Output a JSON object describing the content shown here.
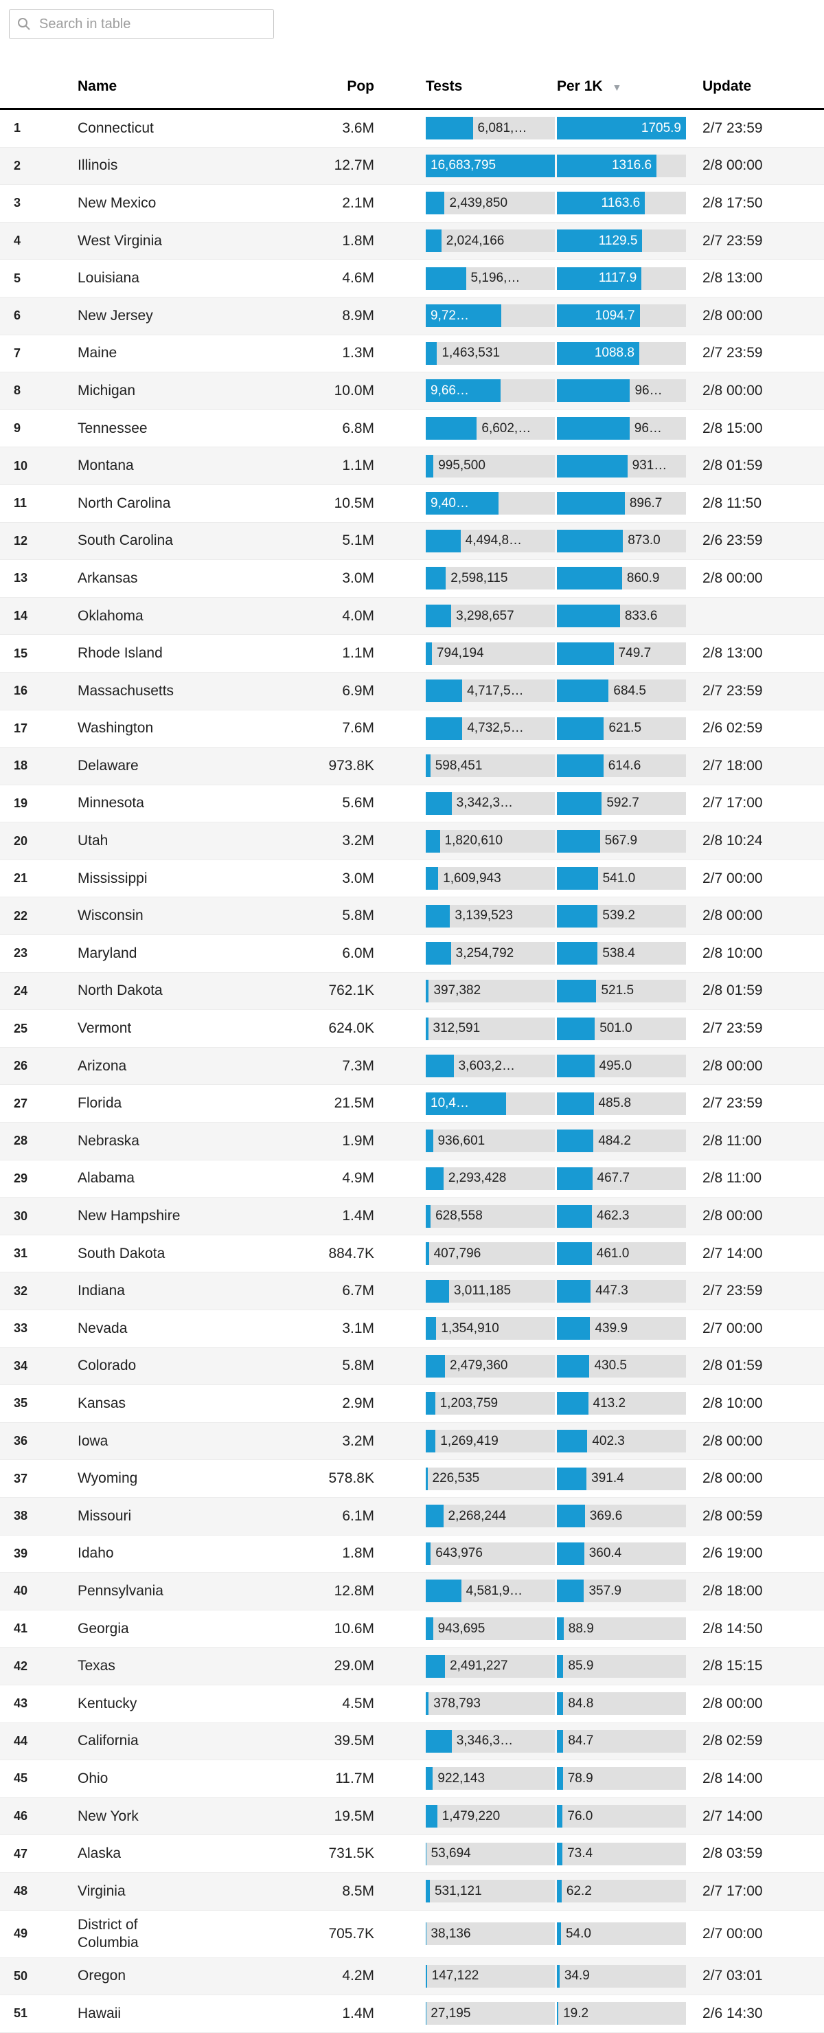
{
  "search": {
    "placeholder": "Search in table",
    "value": ""
  },
  "table": {
    "columns": {
      "name": "Name",
      "pop": "Pop",
      "tests": "Tests",
      "per1k": "Per 1K",
      "update": "Update"
    },
    "sort": {
      "column": "per1k",
      "direction": "desc",
      "arrow": "▼"
    },
    "colors": {
      "bar": "#189ad3",
      "track": "#e0e0e0"
    },
    "tests_max": 16683795,
    "per1k_max": 1705.9,
    "rows": [
      {
        "rank": "1",
        "name": "Connecticut",
        "pop": "3.6M",
        "tests": {
          "label": "6,081,…",
          "value": 6081000,
          "inside": false
        },
        "per1k": {
          "label": "1705.9",
          "value": 1705.9,
          "inside": true
        },
        "update": "2/7 23:59"
      },
      {
        "rank": "2",
        "name": "Illinois",
        "pop": "12.7M",
        "tests": {
          "label": "16,683,795",
          "value": 16683795,
          "inside": true
        },
        "per1k": {
          "label": "1316.6",
          "value": 1316.6,
          "inside": true
        },
        "update": "2/8 00:00"
      },
      {
        "rank": "3",
        "name": "New Mexico",
        "pop": "2.1M",
        "tests": {
          "label": "2,439,850",
          "value": 2439850,
          "inside": false
        },
        "per1k": {
          "label": "1163.6",
          "value": 1163.6,
          "inside": true
        },
        "update": "2/8 17:50"
      },
      {
        "rank": "4",
        "name": "West Virginia",
        "pop": "1.8M",
        "tests": {
          "label": "2,024,166",
          "value": 2024166,
          "inside": false
        },
        "per1k": {
          "label": "1129.5",
          "value": 1129.5,
          "inside": true
        },
        "update": "2/7 23:59"
      },
      {
        "rank": "5",
        "name": "Louisiana",
        "pop": "4.6M",
        "tests": {
          "label": "5,196,…",
          "value": 5196000,
          "inside": false
        },
        "per1k": {
          "label": "1117.9",
          "value": 1117.9,
          "inside": true
        },
        "update": "2/8 13:00"
      },
      {
        "rank": "6",
        "name": "New Jersey",
        "pop": "8.9M",
        "tests": {
          "label": "9,72…",
          "value": 9720000,
          "inside": true
        },
        "per1k": {
          "label": "1094.7",
          "value": 1094.7,
          "inside": true
        },
        "update": "2/8 00:00"
      },
      {
        "rank": "7",
        "name": "Maine",
        "pop": "1.3M",
        "tests": {
          "label": "1,463,531",
          "value": 1463531,
          "inside": false
        },
        "per1k": {
          "label": "1088.8",
          "value": 1088.8,
          "inside": true
        },
        "update": "2/7 23:59"
      },
      {
        "rank": "8",
        "name": "Michigan",
        "pop": "10.0M",
        "tests": {
          "label": "9,66…",
          "value": 9660000,
          "inside": true
        },
        "per1k": {
          "label": "96…",
          "value": 966,
          "inside": false
        },
        "update": "2/8 00:00"
      },
      {
        "rank": "9",
        "name": "Tennessee",
        "pop": "6.8M",
        "tests": {
          "label": "6,602,…",
          "value": 6602000,
          "inside": false
        },
        "per1k": {
          "label": "96…",
          "value": 960,
          "inside": false
        },
        "update": "2/8 15:00"
      },
      {
        "rank": "10",
        "name": "Montana",
        "pop": "1.1M",
        "tests": {
          "label": "995,500",
          "value": 995500,
          "inside": false
        },
        "per1k": {
          "label": "931…",
          "value": 931,
          "inside": false
        },
        "update": "2/8 01:59"
      },
      {
        "rank": "11",
        "name": "North Carolina",
        "pop": "10.5M",
        "tests": {
          "label": "9,40…",
          "value": 9400000,
          "inside": true
        },
        "per1k": {
          "label": "896.7",
          "value": 896.7,
          "inside": false
        },
        "update": "2/8 11:50"
      },
      {
        "rank": "12",
        "name": "South Carolina",
        "pop": "5.1M",
        "tests": {
          "label": "4,494,8…",
          "value": 4494800,
          "inside": false
        },
        "per1k": {
          "label": "873.0",
          "value": 873.0,
          "inside": false
        },
        "update": "2/6 23:59"
      },
      {
        "rank": "13",
        "name": "Arkansas",
        "pop": "3.0M",
        "tests": {
          "label": "2,598,115",
          "value": 2598115,
          "inside": false
        },
        "per1k": {
          "label": "860.9",
          "value": 860.9,
          "inside": false
        },
        "update": "2/8 00:00"
      },
      {
        "rank": "14",
        "name": "Oklahoma",
        "pop": "4.0M",
        "tests": {
          "label": "3,298,657",
          "value": 3298657,
          "inside": false
        },
        "per1k": {
          "label": "833.6",
          "value": 833.6,
          "inside": false
        },
        "update": ""
      },
      {
        "rank": "15",
        "name": "Rhode Island",
        "pop": "1.1M",
        "tests": {
          "label": "794,194",
          "value": 794194,
          "inside": false
        },
        "per1k": {
          "label": "749.7",
          "value": 749.7,
          "inside": false
        },
        "update": "2/8 13:00"
      },
      {
        "rank": "16",
        "name": "Massachusetts",
        "pop": "6.9M",
        "tests": {
          "label": "4,717,5…",
          "value": 4717500,
          "inside": false
        },
        "per1k": {
          "label": "684.5",
          "value": 684.5,
          "inside": false
        },
        "update": "2/7 23:59"
      },
      {
        "rank": "17",
        "name": "Washington",
        "pop": "7.6M",
        "tests": {
          "label": "4,732,5…",
          "value": 4732500,
          "inside": false
        },
        "per1k": {
          "label": "621.5",
          "value": 621.5,
          "inside": false
        },
        "update": "2/6 02:59"
      },
      {
        "rank": "18",
        "name": "Delaware",
        "pop": "973.8K",
        "tests": {
          "label": "598,451",
          "value": 598451,
          "inside": false
        },
        "per1k": {
          "label": "614.6",
          "value": 614.6,
          "inside": false
        },
        "update": "2/7 18:00"
      },
      {
        "rank": "19",
        "name": "Minnesota",
        "pop": "5.6M",
        "tests": {
          "label": "3,342,3…",
          "value": 3342300,
          "inside": false
        },
        "per1k": {
          "label": "592.7",
          "value": 592.7,
          "inside": false
        },
        "update": "2/7 17:00"
      },
      {
        "rank": "20",
        "name": "Utah",
        "pop": "3.2M",
        "tests": {
          "label": "1,820,610",
          "value": 1820610,
          "inside": false
        },
        "per1k": {
          "label": "567.9",
          "value": 567.9,
          "inside": false
        },
        "update": "2/8 10:24"
      },
      {
        "rank": "21",
        "name": "Mississippi",
        "pop": "3.0M",
        "tests": {
          "label": "1,609,943",
          "value": 1609943,
          "inside": false
        },
        "per1k": {
          "label": "541.0",
          "value": 541.0,
          "inside": false
        },
        "update": "2/7 00:00"
      },
      {
        "rank": "22",
        "name": "Wisconsin",
        "pop": "5.8M",
        "tests": {
          "label": "3,139,523",
          "value": 3139523,
          "inside": false
        },
        "per1k": {
          "label": "539.2",
          "value": 539.2,
          "inside": false
        },
        "update": "2/8 00:00"
      },
      {
        "rank": "23",
        "name": "Maryland",
        "pop": "6.0M",
        "tests": {
          "label": "3,254,792",
          "value": 3254792,
          "inside": false
        },
        "per1k": {
          "label": "538.4",
          "value": 538.4,
          "inside": false
        },
        "update": "2/8 10:00"
      },
      {
        "rank": "24",
        "name": "North Dakota",
        "pop": "762.1K",
        "tests": {
          "label": "397,382",
          "value": 397382,
          "inside": false
        },
        "per1k": {
          "label": "521.5",
          "value": 521.5,
          "inside": false
        },
        "update": "2/8 01:59"
      },
      {
        "rank": "25",
        "name": "Vermont",
        "pop": "624.0K",
        "tests": {
          "label": "312,591",
          "value": 312591,
          "inside": false
        },
        "per1k": {
          "label": "501.0",
          "value": 501.0,
          "inside": false
        },
        "update": "2/7 23:59"
      },
      {
        "rank": "26",
        "name": "Arizona",
        "pop": "7.3M",
        "tests": {
          "label": "3,603,2…",
          "value": 3603200,
          "inside": false
        },
        "per1k": {
          "label": "495.0",
          "value": 495.0,
          "inside": false
        },
        "update": "2/8 00:00"
      },
      {
        "rank": "27",
        "name": "Florida",
        "pop": "21.5M",
        "tests": {
          "label": "10,4…",
          "value": 10400000,
          "inside": true
        },
        "per1k": {
          "label": "485.8",
          "value": 485.8,
          "inside": false
        },
        "update": "2/7 23:59"
      },
      {
        "rank": "28",
        "name": "Nebraska",
        "pop": "1.9M",
        "tests": {
          "label": "936,601",
          "value": 936601,
          "inside": false
        },
        "per1k": {
          "label": "484.2",
          "value": 484.2,
          "inside": false
        },
        "update": "2/8 11:00"
      },
      {
        "rank": "29",
        "name": "Alabama",
        "pop": "4.9M",
        "tests": {
          "label": "2,293,428",
          "value": 2293428,
          "inside": false
        },
        "per1k": {
          "label": "467.7",
          "value": 467.7,
          "inside": false
        },
        "update": "2/8 11:00"
      },
      {
        "rank": "30",
        "name": "New Hampshire",
        "pop": "1.4M",
        "tests": {
          "label": "628,558",
          "value": 628558,
          "inside": false
        },
        "per1k": {
          "label": "462.3",
          "value": 462.3,
          "inside": false
        },
        "update": "2/8 00:00"
      },
      {
        "rank": "31",
        "name": "South Dakota",
        "pop": "884.7K",
        "tests": {
          "label": "407,796",
          "value": 407796,
          "inside": false
        },
        "per1k": {
          "label": "461.0",
          "value": 461.0,
          "inside": false
        },
        "update": "2/7 14:00"
      },
      {
        "rank": "32",
        "name": "Indiana",
        "pop": "6.7M",
        "tests": {
          "label": "3,011,185",
          "value": 3011185,
          "inside": false
        },
        "per1k": {
          "label": "447.3",
          "value": 447.3,
          "inside": false
        },
        "update": "2/7 23:59"
      },
      {
        "rank": "33",
        "name": "Nevada",
        "pop": "3.1M",
        "tests": {
          "label": "1,354,910",
          "value": 1354910,
          "inside": false
        },
        "per1k": {
          "label": "439.9",
          "value": 439.9,
          "inside": false
        },
        "update": "2/7 00:00"
      },
      {
        "rank": "34",
        "name": "Colorado",
        "pop": "5.8M",
        "tests": {
          "label": "2,479,360",
          "value": 2479360,
          "inside": false
        },
        "per1k": {
          "label": "430.5",
          "value": 430.5,
          "inside": false
        },
        "update": "2/8 01:59"
      },
      {
        "rank": "35",
        "name": "Kansas",
        "pop": "2.9M",
        "tests": {
          "label": "1,203,759",
          "value": 1203759,
          "inside": false
        },
        "per1k": {
          "label": "413.2",
          "value": 413.2,
          "inside": false
        },
        "update": "2/8 10:00"
      },
      {
        "rank": "36",
        "name": "Iowa",
        "pop": "3.2M",
        "tests": {
          "label": "1,269,419",
          "value": 1269419,
          "inside": false
        },
        "per1k": {
          "label": "402.3",
          "value": 402.3,
          "inside": false
        },
        "update": "2/8 00:00"
      },
      {
        "rank": "37",
        "name": "Wyoming",
        "pop": "578.8K",
        "tests": {
          "label": "226,535",
          "value": 226535,
          "inside": false
        },
        "per1k": {
          "label": "391.4",
          "value": 391.4,
          "inside": false
        },
        "update": "2/8 00:00"
      },
      {
        "rank": "38",
        "name": "Missouri",
        "pop": "6.1M",
        "tests": {
          "label": "2,268,244",
          "value": 2268244,
          "inside": false
        },
        "per1k": {
          "label": "369.6",
          "value": 369.6,
          "inside": false
        },
        "update": "2/8 00:59"
      },
      {
        "rank": "39",
        "name": "Idaho",
        "pop": "1.8M",
        "tests": {
          "label": "643,976",
          "value": 643976,
          "inside": false
        },
        "per1k": {
          "label": "360.4",
          "value": 360.4,
          "inside": false
        },
        "update": "2/6 19:00"
      },
      {
        "rank": "40",
        "name": "Pennsylvania",
        "pop": "12.8M",
        "tests": {
          "label": "4,581,9…",
          "value": 4581900,
          "inside": false
        },
        "per1k": {
          "label": "357.9",
          "value": 357.9,
          "inside": false
        },
        "update": "2/8 18:00"
      },
      {
        "rank": "41",
        "name": "Georgia",
        "pop": "10.6M",
        "tests": {
          "label": "943,695",
          "value": 943695,
          "inside": false
        },
        "per1k": {
          "label": "88.9",
          "value": 88.9,
          "inside": false
        },
        "update": "2/8 14:50"
      },
      {
        "rank": "42",
        "name": "Texas",
        "pop": "29.0M",
        "tests": {
          "label": "2,491,227",
          "value": 2491227,
          "inside": false
        },
        "per1k": {
          "label": "85.9",
          "value": 85.9,
          "inside": false
        },
        "update": "2/8 15:15"
      },
      {
        "rank": "43",
        "name": "Kentucky",
        "pop": "4.5M",
        "tests": {
          "label": "378,793",
          "value": 378793,
          "inside": false
        },
        "per1k": {
          "label": "84.8",
          "value": 84.8,
          "inside": false
        },
        "update": "2/8 00:00"
      },
      {
        "rank": "44",
        "name": "California",
        "pop": "39.5M",
        "tests": {
          "label": "3,346,3…",
          "value": 3346300,
          "inside": false
        },
        "per1k": {
          "label": "84.7",
          "value": 84.7,
          "inside": false
        },
        "update": "2/8 02:59"
      },
      {
        "rank": "45",
        "name": "Ohio",
        "pop": "11.7M",
        "tests": {
          "label": "922,143",
          "value": 922143,
          "inside": false
        },
        "per1k": {
          "label": "78.9",
          "value": 78.9,
          "inside": false
        },
        "update": "2/8 14:00"
      },
      {
        "rank": "46",
        "name": "New York",
        "pop": "19.5M",
        "tests": {
          "label": "1,479,220",
          "value": 1479220,
          "inside": false
        },
        "per1k": {
          "label": "76.0",
          "value": 76.0,
          "inside": false
        },
        "update": "2/7 14:00"
      },
      {
        "rank": "47",
        "name": "Alaska",
        "pop": "731.5K",
        "tests": {
          "label": "53,694",
          "value": 53694,
          "inside": false
        },
        "per1k": {
          "label": "73.4",
          "value": 73.4,
          "inside": false
        },
        "update": "2/8 03:59"
      },
      {
        "rank": "48",
        "name": "Virginia",
        "pop": "8.5M",
        "tests": {
          "label": "531,121",
          "value": 531121,
          "inside": false
        },
        "per1k": {
          "label": "62.2",
          "value": 62.2,
          "inside": false
        },
        "update": "2/7 17:00"
      },
      {
        "rank": "49",
        "name": "District of Columbia",
        "pop": "705.7K",
        "tests": {
          "label": "38,136",
          "value": 38136,
          "inside": false
        },
        "per1k": {
          "label": "54.0",
          "value": 54.0,
          "inside": false
        },
        "update": "2/7 00:00"
      },
      {
        "rank": "50",
        "name": "Oregon",
        "pop": "4.2M",
        "tests": {
          "label": "147,122",
          "value": 147122,
          "inside": false
        },
        "per1k": {
          "label": "34.9",
          "value": 34.9,
          "inside": false
        },
        "update": "2/7 03:01"
      },
      {
        "rank": "51",
        "name": "Hawaii",
        "pop": "1.4M",
        "tests": {
          "label": "27,195",
          "value": 27195,
          "inside": false
        },
        "per1k": {
          "label": "19.2",
          "value": 19.2,
          "inside": false
        },
        "update": "2/6 14:30"
      }
    ]
  }
}
